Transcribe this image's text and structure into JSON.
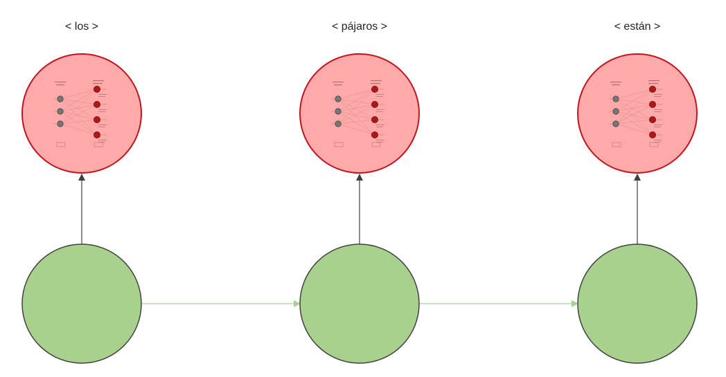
{
  "tokens": [
    {
      "label": "< los >"
    },
    {
      "label": "< pájaros >"
    },
    {
      "label": "< están >"
    }
  ],
  "colors": {
    "output_fill": "#ffaaaa",
    "output_stroke": "#c0141c",
    "hidden_fill": "#a9d18e",
    "hidden_stroke": "#404040",
    "arrow_vertical": "#404040",
    "arrow_horizontal": "#a9d18e",
    "neuron_gray": "#777777",
    "neuron_red": "#b01818"
  }
}
